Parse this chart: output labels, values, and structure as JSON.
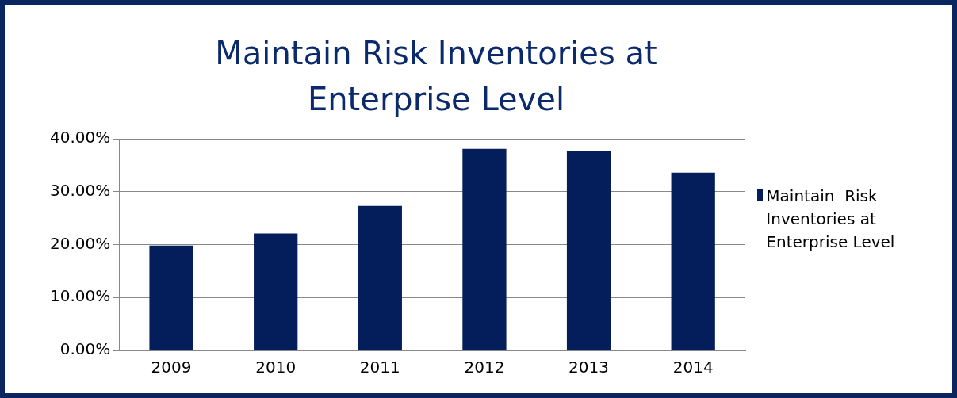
{
  "chart_data": {
    "type": "bar",
    "title": "Maintain Risk Inventories at Enterprise Level",
    "categories": [
      "2009",
      "2010",
      "2011",
      "2012",
      "2013",
      "2014"
    ],
    "series": [
      {
        "name": "Maintain  Risk Inventories at Enterprise Level",
        "color": "#041e5c",
        "values": [
          19.8,
          22.1,
          27.3,
          38.1,
          37.7,
          33.6
        ]
      }
    ],
    "ylim": [
      0,
      40
    ],
    "yticks": [
      {
        "value": 0,
        "label": "0.00%"
      },
      {
        "value": 10,
        "label": "10.00%"
      },
      {
        "value": 20,
        "label": "20.00%"
      },
      {
        "value": 30,
        "label": "30.00%"
      },
      {
        "value": 40,
        "label": "40.00%"
      }
    ],
    "grid": "y",
    "legend": "right"
  }
}
